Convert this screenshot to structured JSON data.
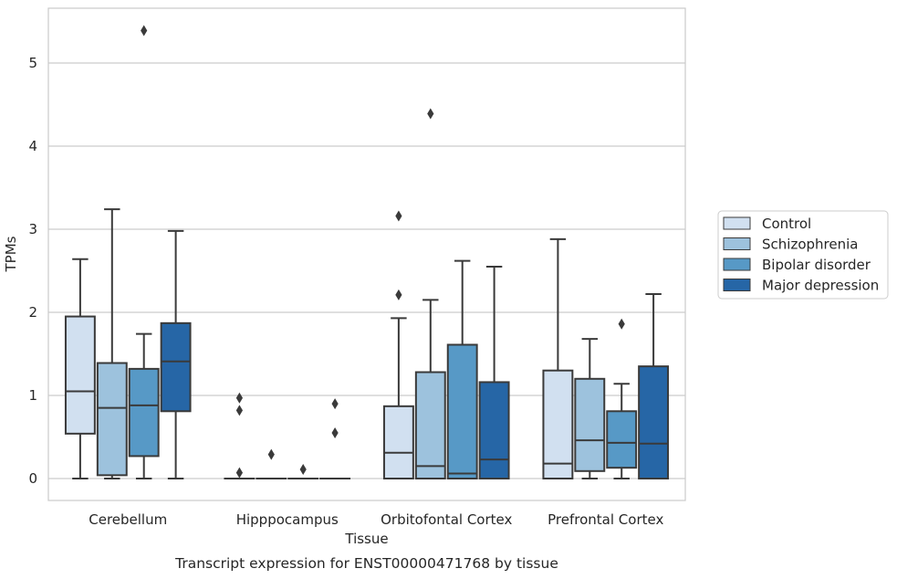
{
  "chart_data": {
    "type": "box",
    "title": "",
    "caption": "Transcript expression for ENST00000471768 by tissue",
    "xlabel": "Tissue",
    "ylabel": "TPMs",
    "ylim": [
      -0.26,
      5.7
    ],
    "yticks": [
      0,
      1,
      2,
      3,
      4,
      5
    ],
    "grid": "horizontal",
    "legend_position": "right",
    "categories": [
      "Cerebellum",
      "Hipppocampus",
      "Orbitofontal Cortex",
      "Prefrontal Cortex"
    ],
    "series": [
      {
        "name": "Control",
        "color": "#d1e0f0",
        "boxes": [
          {
            "whislo": 0.0,
            "q1": 0.54,
            "med": 1.05,
            "q3": 1.95,
            "whishi": 2.64,
            "fliers": []
          },
          {
            "whislo": 0.0,
            "q1": 0.0,
            "med": 0.0,
            "q3": 0.0,
            "whishi": 0.0,
            "fliers": [
              0.97,
              0.82,
              0.07
            ]
          },
          {
            "whislo": 0.0,
            "q1": 0.0,
            "med": 0.31,
            "q3": 0.87,
            "whishi": 1.93,
            "fliers": [
              3.16,
              2.21
            ]
          },
          {
            "whislo": 0.0,
            "q1": 0.0,
            "med": 0.18,
            "q3": 1.3,
            "whishi": 2.88,
            "fliers": []
          }
        ]
      },
      {
        "name": "Schizophrenia",
        "color": "#9dc2dd",
        "boxes": [
          {
            "whislo": 0.0,
            "q1": 0.04,
            "med": 0.85,
            "q3": 1.39,
            "whishi": 3.24,
            "fliers": []
          },
          {
            "whislo": 0.0,
            "q1": 0.0,
            "med": 0.0,
            "q3": 0.0,
            "whishi": 0.0,
            "fliers": [
              0.29
            ]
          },
          {
            "whislo": 0.0,
            "q1": 0.0,
            "med": 0.15,
            "q3": 1.28,
            "whishi": 2.15,
            "fliers": [
              4.39
            ]
          },
          {
            "whislo": 0.0,
            "q1": 0.09,
            "med": 0.46,
            "q3": 1.2,
            "whishi": 1.68,
            "fliers": []
          }
        ]
      },
      {
        "name": "Bipolar disorder",
        "color": "#5799c6",
        "boxes": [
          {
            "whislo": 0.0,
            "q1": 0.27,
            "med": 0.88,
            "q3": 1.32,
            "whishi": 1.74,
            "fliers": [
              5.39
            ]
          },
          {
            "whislo": 0.0,
            "q1": 0.0,
            "med": 0.0,
            "q3": 0.0,
            "whishi": 0.0,
            "fliers": [
              0.11
            ]
          },
          {
            "whislo": 0.0,
            "q1": 0.0,
            "med": 0.06,
            "q3": 1.61,
            "whishi": 2.62,
            "fliers": []
          },
          {
            "whislo": 0.0,
            "q1": 0.13,
            "med": 0.43,
            "q3": 0.81,
            "whishi": 1.14,
            "fliers": [
              1.86
            ]
          }
        ]
      },
      {
        "name": "Major depression",
        "color": "#2666a6",
        "boxes": [
          {
            "whislo": 0.0,
            "q1": 0.81,
            "med": 1.41,
            "q3": 1.87,
            "whishi": 2.98,
            "fliers": []
          },
          {
            "whislo": 0.0,
            "q1": 0.0,
            "med": 0.0,
            "q3": 0.0,
            "whishi": 0.0,
            "fliers": [
              0.9,
              0.55
            ]
          },
          {
            "whislo": 0.0,
            "q1": 0.0,
            "med": 0.23,
            "q3": 1.16,
            "whishi": 2.55,
            "fliers": []
          },
          {
            "whislo": 0.0,
            "q1": 0.0,
            "med": 0.42,
            "q3": 1.35,
            "whishi": 2.22,
            "fliers": []
          }
        ]
      }
    ]
  }
}
